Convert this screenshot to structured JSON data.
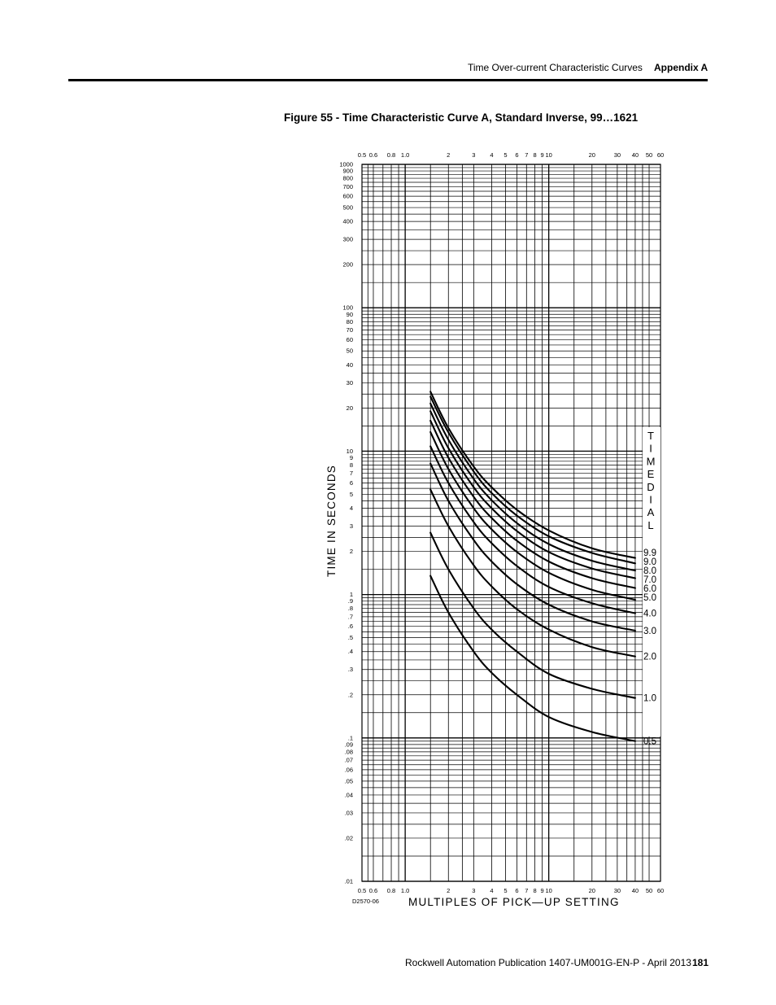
{
  "header": {
    "section": "Time Over-current Characteristic Curves",
    "appendix": "Appendix A"
  },
  "figure": {
    "title": "Figure 55 - Time Characteristic Curve A, Standard Inverse, 99…1621"
  },
  "footer": {
    "publication": "Rockwell Automation Publication 1407-UM001G-EN-P - April 2013",
    "page_number": "181"
  },
  "chart_data": {
    "type": "line",
    "xscale": "log",
    "yscale": "log",
    "xlim": [
      0.5,
      60
    ],
    "ylim": [
      0.01,
      1000
    ],
    "grid": true,
    "xlabel": "MULTIPLES  OF  PICK—UP  SETTING",
    "ylabel": "TIME  IN  SECONDS",
    "drawing_id": "D2570-06",
    "legend_title": "TIME DIAL",
    "x_ticks": [
      {
        "v": 0.5,
        "label": "0.5"
      },
      {
        "v": 0.6,
        "label": "0.6"
      },
      {
        "v": 0.8,
        "label": "0.8"
      },
      {
        "v": 1.0,
        "label": "1.0"
      },
      {
        "v": 2,
        "label": "2"
      },
      {
        "v": 3,
        "label": "3"
      },
      {
        "v": 4,
        "label": "4"
      },
      {
        "v": 5,
        "label": "5"
      },
      {
        "v": 6,
        "label": "6"
      },
      {
        "v": 7,
        "label": "7"
      },
      {
        "v": 8,
        "label": "8"
      },
      {
        "v": 9,
        "label": "9"
      },
      {
        "v": 10,
        "label": "10"
      },
      {
        "v": 20,
        "label": "20"
      },
      {
        "v": 30,
        "label": "30"
      },
      {
        "v": 40,
        "label": "40"
      },
      {
        "v": 50,
        "label": "50"
      },
      {
        "v": 60,
        "label": "60"
      }
    ],
    "y_ticks": [
      {
        "v": 1000,
        "label": "1000"
      },
      {
        "v": 900,
        "label": "900"
      },
      {
        "v": 800,
        "label": "800"
      },
      {
        "v": 700,
        "label": "700"
      },
      {
        "v": 600,
        "label": "600"
      },
      {
        "v": 500,
        "label": "500"
      },
      {
        "v": 400,
        "label": "400"
      },
      {
        "v": 300,
        "label": "300"
      },
      {
        "v": 200,
        "label": "200"
      },
      {
        "v": 100,
        "label": "100"
      },
      {
        "v": 90,
        "label": "90"
      },
      {
        "v": 80,
        "label": "80"
      },
      {
        "v": 70,
        "label": "70"
      },
      {
        "v": 60,
        "label": "60"
      },
      {
        "v": 50,
        "label": "50"
      },
      {
        "v": 40,
        "label": "40"
      },
      {
        "v": 30,
        "label": "30"
      },
      {
        "v": 20,
        "label": "20"
      },
      {
        "v": 10,
        "label": "10"
      },
      {
        "v": 9,
        "label": "9"
      },
      {
        "v": 8,
        "label": "8"
      },
      {
        "v": 7,
        "label": "7"
      },
      {
        "v": 6,
        "label": "6"
      },
      {
        "v": 5,
        "label": "5"
      },
      {
        "v": 4,
        "label": "4"
      },
      {
        "v": 3,
        "label": "3"
      },
      {
        "v": 2,
        "label": "2"
      },
      {
        "v": 1,
        "label": "1"
      },
      {
        "v": 0.9,
        "label": ".9"
      },
      {
        "v": 0.8,
        "label": ".8"
      },
      {
        "v": 0.7,
        "label": ".7"
      },
      {
        "v": 0.6,
        "label": ".6"
      },
      {
        "v": 0.5,
        "label": ".5"
      },
      {
        "v": 0.4,
        "label": ".4"
      },
      {
        "v": 0.3,
        "label": ".3"
      },
      {
        "v": 0.2,
        "label": ".2"
      },
      {
        "v": 0.1,
        "label": ".1"
      },
      {
        "v": 0.09,
        "label": ".09"
      },
      {
        "v": 0.08,
        "label": ".08"
      },
      {
        "v": 0.07,
        "label": ".07"
      },
      {
        "v": 0.06,
        "label": ".06"
      },
      {
        "v": 0.05,
        "label": ".05"
      },
      {
        "v": 0.04,
        "label": ".04"
      },
      {
        "v": 0.03,
        "label": ".03"
      },
      {
        "v": 0.02,
        "label": ".02"
      },
      {
        "v": 0.01,
        "label": ".01"
      }
    ],
    "x_minor_grid": [
      0.5,
      0.55,
      0.6,
      0.7,
      0.8,
      0.9,
      1,
      1.5,
      2,
      2.5,
      3,
      4,
      5,
      6,
      7,
      8,
      9,
      10,
      15,
      20,
      25,
      30,
      35,
      40,
      45,
      50,
      60
    ],
    "x_major_grid": [
      1,
      10
    ],
    "y_minor_grid": [
      1000,
      950,
      900,
      850,
      800,
      750,
      700,
      650,
      600,
      550,
      500,
      450,
      400,
      350,
      300,
      250,
      200,
      150,
      100,
      95,
      90,
      85,
      80,
      75,
      70,
      65,
      60,
      55,
      50,
      45,
      40,
      35,
      30,
      25,
      20,
      15,
      10,
      9.5,
      9,
      8.5,
      8,
      7.5,
      7,
      6.5,
      6,
      5.5,
      5,
      4.5,
      4,
      3.5,
      3,
      2.5,
      2,
      1.5,
      1,
      0.95,
      0.9,
      0.85,
      0.8,
      0.75,
      0.7,
      0.65,
      0.6,
      0.55,
      0.5,
      0.45,
      0.4,
      0.35,
      0.3,
      0.25,
      0.2,
      0.15,
      0.1,
      0.095,
      0.09,
      0.085,
      0.08,
      0.075,
      0.07,
      0.065,
      0.06,
      0.055,
      0.05,
      0.045,
      0.04,
      0.035,
      0.03,
      0.025,
      0.02,
      0.015,
      0.01
    ],
    "y_major_grid": [
      1000,
      100,
      10,
      1,
      0.1,
      0.01
    ],
    "curve_x": [
      1.5,
      2,
      3,
      4,
      6,
      10,
      20,
      40
    ],
    "series": [
      {
        "name": "9.9",
        "values": [
          26,
          14.5,
          7.8,
          5.6,
          3.9,
          2.8,
          2.1,
          1.8
        ]
      },
      {
        "name": "9.0",
        "values": [
          24,
          13.5,
          7.2,
          5.1,
          3.55,
          2.55,
          1.95,
          1.65
        ]
      },
      {
        "name": "8.0",
        "values": [
          21.5,
          12.0,
          6.4,
          4.55,
          3.15,
          2.25,
          1.72,
          1.47
        ]
      },
      {
        "name": "7.0",
        "values": [
          19,
          10.5,
          5.6,
          4.0,
          2.77,
          1.98,
          1.52,
          1.3
        ]
      },
      {
        "name": "6.0",
        "values": [
          16.3,
          9.0,
          4.8,
          3.42,
          2.37,
          1.7,
          1.3,
          1.11
        ]
      },
      {
        "name": "5.0",
        "values": [
          13.6,
          7.5,
          4.0,
          2.85,
          1.98,
          1.42,
          1.08,
          0.92
        ]
      },
      {
        "name": "4.0",
        "values": [
          10.8,
          6.0,
          3.2,
          2.28,
          1.58,
          1.13,
          0.87,
          0.74
        ]
      },
      {
        "name": "3.0",
        "values": [
          8.2,
          4.5,
          2.4,
          1.7,
          1.18,
          0.85,
          0.65,
          0.56
        ]
      },
      {
        "name": "2.0",
        "values": [
          5.4,
          3.0,
          1.6,
          1.14,
          0.79,
          0.57,
          0.43,
          0.37
        ]
      },
      {
        "name": "1.0",
        "values": [
          2.7,
          1.5,
          0.8,
          0.57,
          0.4,
          0.28,
          0.22,
          0.19
        ]
      },
      {
        "name": "0.5",
        "values": [
          1.35,
          0.75,
          0.4,
          0.285,
          0.2,
          0.14,
          0.11,
          0.095
        ]
      }
    ]
  }
}
